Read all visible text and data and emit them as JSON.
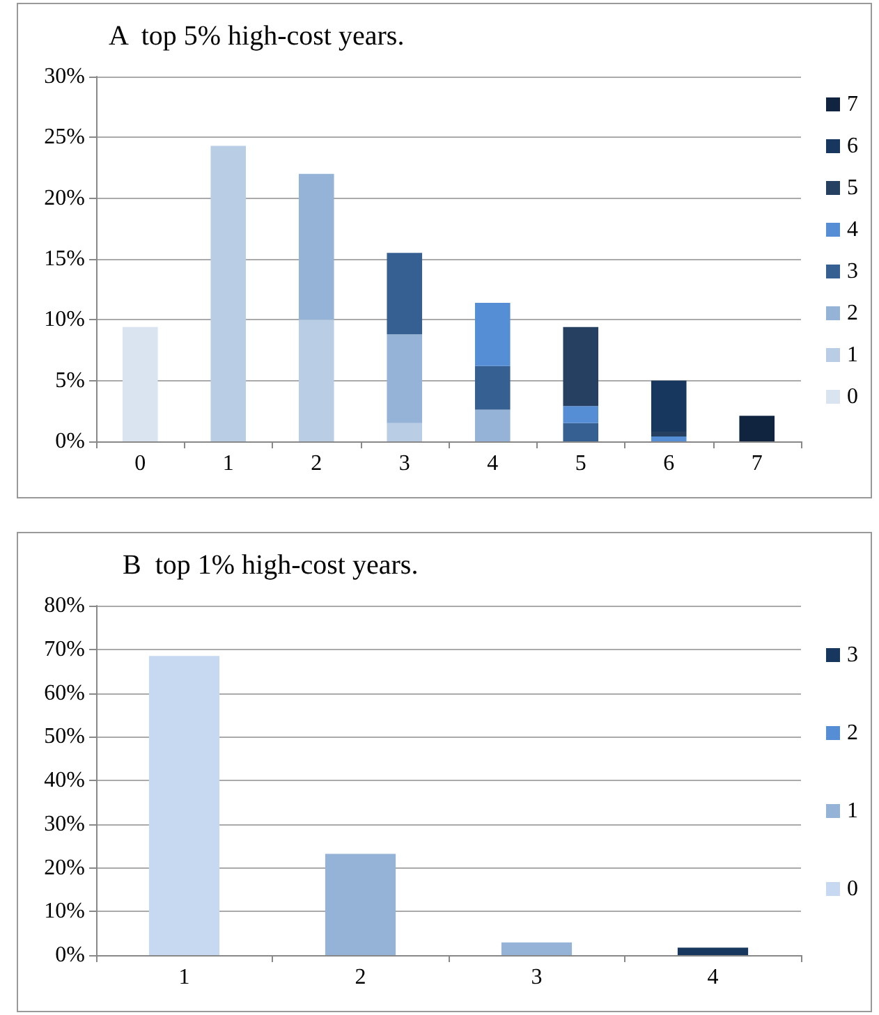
{
  "chart_data": [
    {
      "type": "bar",
      "title": "A  top 5% high-cost years.",
      "categories": [
        "0",
        "1",
        "2",
        "3",
        "4",
        "5",
        "6",
        "7"
      ],
      "stacked": true,
      "legend": "right",
      "grid": "y",
      "ylim": [
        0,
        30
      ],
      "yticks": [
        {
          "value": 0,
          "label": "0%"
        },
        {
          "value": 5,
          "label": "5%"
        },
        {
          "value": 10,
          "label": "10%"
        },
        {
          "value": 15,
          "label": "15%"
        },
        {
          "value": 20,
          "label": "20%"
        },
        {
          "value": 25,
          "label": "25%"
        },
        {
          "value": 30,
          "label": "30%"
        }
      ],
      "series": [
        {
          "name": "0",
          "color": "#dae3f0",
          "values": [
            9.4,
            null,
            null,
            null,
            null,
            null,
            null,
            null
          ]
        },
        {
          "name": "1",
          "color": "#b9cde5",
          "values": [
            null,
            24.3,
            10.0,
            1.5,
            null,
            null,
            null,
            null
          ]
        },
        {
          "name": "2",
          "color": "#95b3d7",
          "values": [
            null,
            null,
            12.0,
            7.3,
            2.6,
            null,
            null,
            null
          ]
        },
        {
          "name": "3",
          "color": "#376092",
          "values": [
            null,
            null,
            null,
            6.7,
            3.6,
            1.5,
            null,
            null
          ]
        },
        {
          "name": "4",
          "color": "#558ed5",
          "values": [
            null,
            null,
            null,
            null,
            5.2,
            1.4,
            0.4,
            null
          ]
        },
        {
          "name": "5",
          "color": "#254061",
          "values": [
            null,
            null,
            null,
            null,
            null,
            6.5,
            0.4,
            null
          ]
        },
        {
          "name": "6",
          "color": "#17375e",
          "values": [
            null,
            null,
            null,
            null,
            null,
            null,
            4.2,
            null
          ]
        },
        {
          "name": "7",
          "color": "#10243f",
          "values": [
            null,
            null,
            null,
            null,
            null,
            null,
            null,
            2.1
          ]
        }
      ]
    },
    {
      "type": "bar",
      "title": "B  top 1% high-cost years.",
      "categories": [
        "1",
        "2",
        "3",
        "4"
      ],
      "stacked": true,
      "legend": "right",
      "grid": "y",
      "ylim": [
        0,
        80
      ],
      "yticks": [
        {
          "value": 0,
          "label": "0%"
        },
        {
          "value": 10,
          "label": "10%"
        },
        {
          "value": 20,
          "label": "20%"
        },
        {
          "value": 30,
          "label": "30%"
        },
        {
          "value": 40,
          "label": "40%"
        },
        {
          "value": 50,
          "label": "50%"
        },
        {
          "value": 60,
          "label": "60%"
        },
        {
          "value": 70,
          "label": "70%"
        },
        {
          "value": 80,
          "label": "80%"
        }
      ],
      "series": [
        {
          "name": "0",
          "color": "#c6d9f1",
          "values": [
            68.5,
            null,
            null,
            null
          ]
        },
        {
          "name": "1",
          "color": "#95b3d7",
          "values": [
            null,
            23.2,
            2.9,
            null
          ]
        },
        {
          "name": "2",
          "color": "#558ed5",
          "values": [
            null,
            null,
            null,
            null
          ]
        },
        {
          "name": "3",
          "color": "#17375e",
          "values": [
            null,
            null,
            null,
            1.7
          ]
        }
      ]
    }
  ]
}
